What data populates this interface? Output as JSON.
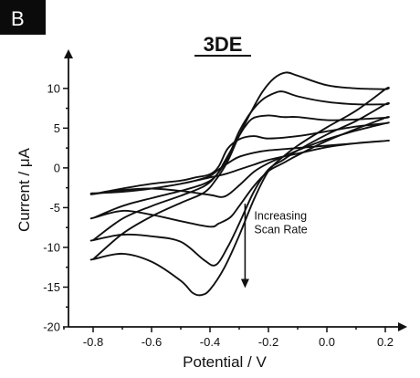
{
  "chart_data": {
    "type": "line",
    "panel_label": "B",
    "title": "3DE",
    "xlabel": "Potential / V",
    "ylabel": "Current / μA",
    "xlim": [
      -0.85,
      0.25
    ],
    "ylim": [
      -20,
      14
    ],
    "x_ticks": [
      -0.8,
      -0.6,
      -0.4,
      -0.2,
      0.0,
      0.2
    ],
    "x_tick_labels": [
      "-0.8",
      "-0.6",
      "-0.4",
      "-0.2",
      "0.0",
      "0.2"
    ],
    "y_ticks": [
      -20,
      -15,
      -10,
      -5,
      0,
      5,
      10
    ],
    "y_tick_labels": [
      "-20",
      "-15",
      "-10",
      "-5",
      "0",
      "5",
      "10"
    ],
    "grid": false,
    "annotation": {
      "lines": [
        "Increasing",
        "Scan Rate"
      ],
      "arrow_x": -0.28,
      "arrow_y": [
        -4.5,
        -15
      ]
    },
    "series": [
      {
        "x": [
          -0.8,
          -0.7,
          -0.6,
          -0.5,
          -0.45,
          -0.4,
          -0.37,
          -0.33,
          -0.3,
          -0.25,
          -0.2,
          -0.1,
          0.0,
          0.1,
          0.2,
          0.2,
          0.1,
          0.0,
          -0.1,
          -0.2,
          -0.25,
          -0.3,
          -0.35,
          -0.4,
          -0.5,
          -0.6,
          -0.7,
          -0.8
        ],
        "y": [
          -3.2,
          -3.0,
          -2.6,
          -2.0,
          -1.6,
          -1.0,
          -0.2,
          0.8,
          1.4,
          1.9,
          2.2,
          2.5,
          2.8,
          3.1,
          3.4,
          3.4,
          3.1,
          2.6,
          1.8,
          1.0,
          0.4,
          -0.2,
          -0.8,
          -1.2,
          -2.0,
          -2.6,
          -3.0,
          -3.2
        ]
      },
      {
        "x": [
          -0.8,
          -0.7,
          -0.6,
          -0.5,
          -0.45,
          -0.4,
          -0.37,
          -0.34,
          -0.3,
          -0.25,
          -0.2,
          -0.1,
          0.0,
          0.1,
          0.2,
          0.2,
          0.1,
          0.0,
          -0.1,
          -0.15,
          -0.2,
          -0.25,
          -0.3,
          -0.35,
          -0.4,
          -0.5,
          -0.6,
          -0.7,
          -0.8
        ],
        "y": [
          -3.3,
          -2.6,
          -2.0,
          -1.6,
          -1.2,
          -0.8,
          0.2,
          2.4,
          3.6,
          4.0,
          3.7,
          4.0,
          4.6,
          5.2,
          5.6,
          5.6,
          4.7,
          3.6,
          2.2,
          1.4,
          0.6,
          -0.5,
          -2.2,
          -3.6,
          -3.4,
          -2.9,
          -2.6,
          -2.8,
          -3.3
        ]
      },
      {
        "x": [
          -0.8,
          -0.7,
          -0.6,
          -0.5,
          -0.42,
          -0.38,
          -0.35,
          -0.31,
          -0.28,
          -0.25,
          -0.2,
          -0.15,
          -0.1,
          0.0,
          0.1,
          0.2,
          0.2,
          0.1,
          0.0,
          -0.1,
          -0.15,
          -0.2,
          -0.25,
          -0.3,
          -0.33,
          -0.37,
          -0.4,
          -0.5,
          -0.6,
          -0.7,
          -0.8
        ],
        "y": [
          -6.3,
          -4.8,
          -3.8,
          -2.9,
          -2.0,
          -1.0,
          0.8,
          3.4,
          5.2,
          6.3,
          6.6,
          6.4,
          6.4,
          6.0,
          6.1,
          6.3,
          6.3,
          4.9,
          3.4,
          1.6,
          0.6,
          -0.4,
          -2.3,
          -4.8,
          -6.2,
          -7.0,
          -7.4,
          -6.7,
          -5.9,
          -5.4,
          -6.3
        ]
      },
      {
        "x": [
          -0.8,
          -0.7,
          -0.6,
          -0.5,
          -0.42,
          -0.38,
          -0.34,
          -0.3,
          -0.26,
          -0.22,
          -0.18,
          -0.15,
          -0.1,
          0.0,
          0.1,
          0.2,
          0.2,
          0.1,
          0.0,
          -0.1,
          -0.15,
          -0.2,
          -0.25,
          -0.3,
          -0.34,
          -0.38,
          -0.42,
          -0.5,
          -0.6,
          -0.7,
          -0.8
        ],
        "y": [
          -9.1,
          -6.4,
          -4.8,
          -3.5,
          -2.3,
          -1.0,
          1.2,
          4.6,
          7.0,
          8.6,
          9.4,
          9.6,
          9.0,
          8.3,
          8.0,
          8.0,
          8.0,
          5.9,
          4.2,
          2.2,
          1.0,
          -0.2,
          -3.0,
          -7.0,
          -10.0,
          -12.2,
          -11.6,
          -9.3,
          -8.6,
          -8.4,
          -9.1
        ]
      },
      {
        "x": [
          -0.8,
          -0.7,
          -0.6,
          -0.5,
          -0.42,
          -0.38,
          -0.34,
          -0.3,
          -0.26,
          -0.22,
          -0.18,
          -0.14,
          -0.1,
          0.0,
          0.1,
          0.2,
          0.2,
          0.1,
          0.0,
          -0.1,
          -0.15,
          -0.2,
          -0.25,
          -0.3,
          -0.35,
          -0.4,
          -0.43,
          -0.46,
          -0.5,
          -0.6,
          -0.7,
          -0.8
        ],
        "y": [
          -11.5,
          -8.3,
          -6.1,
          -4.4,
          -3.1,
          -1.5,
          0.8,
          4.1,
          7.0,
          9.6,
          11.3,
          12.0,
          11.6,
          10.4,
          10.0,
          9.9,
          9.9,
          7.2,
          5.1,
          2.8,
          1.4,
          -0.4,
          -4.0,
          -8.5,
          -12.5,
          -15.3,
          -16.0,
          -15.7,
          -14.2,
          -11.8,
          -10.8,
          -11.5
        ]
      }
    ]
  }
}
